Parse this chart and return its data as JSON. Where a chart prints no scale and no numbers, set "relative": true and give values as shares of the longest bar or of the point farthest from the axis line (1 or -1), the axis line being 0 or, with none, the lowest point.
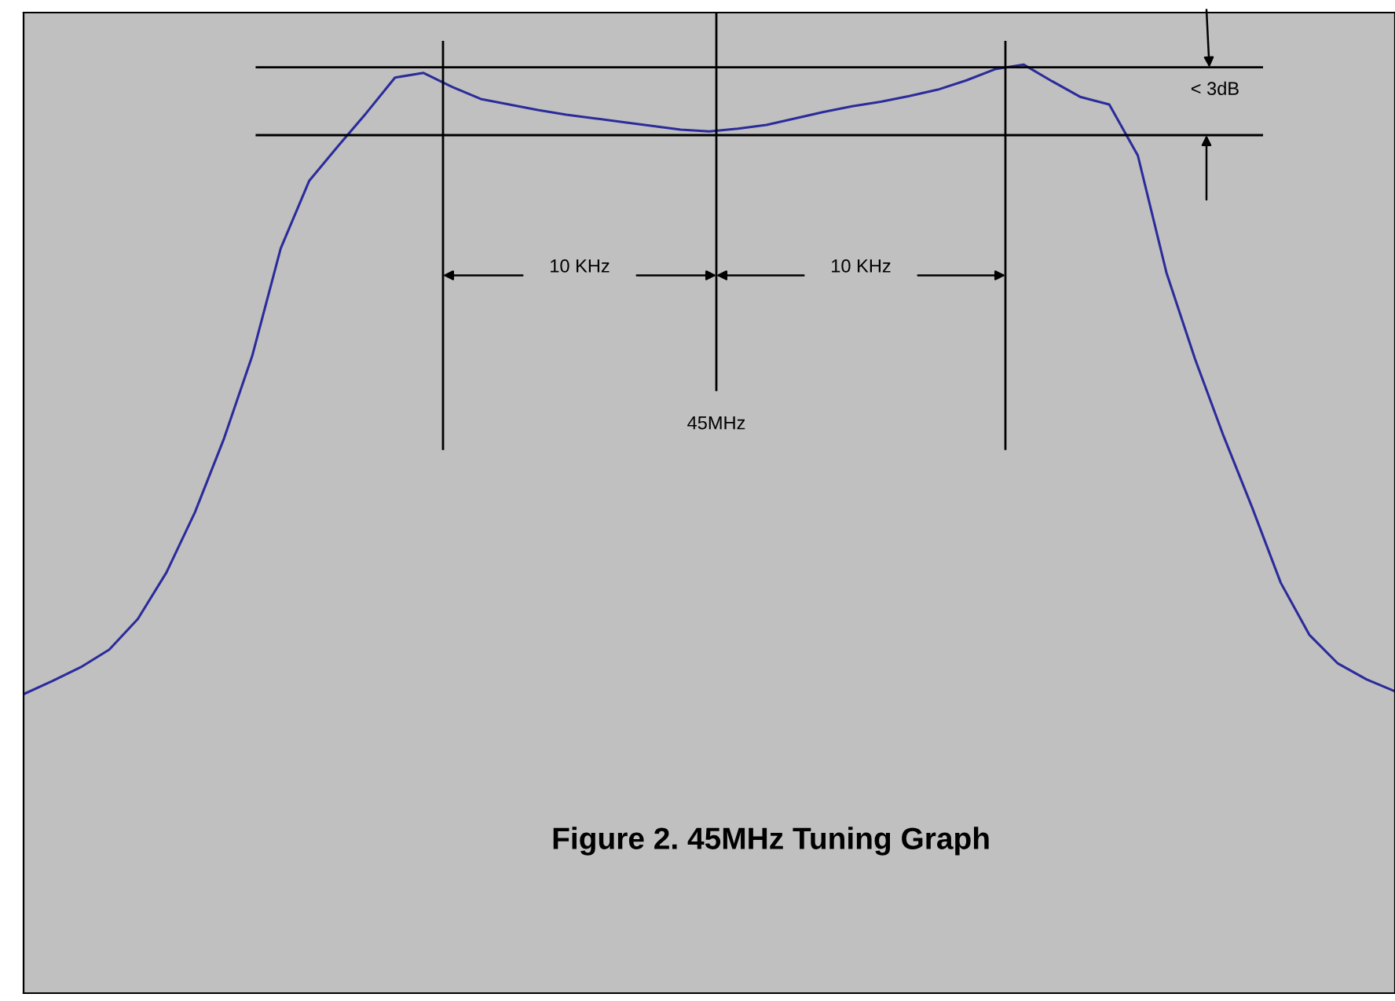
{
  "chart_data": {
    "type": "line",
    "title": "Figure 2. 45MHz Tuning Graph",
    "relative": true,
    "categories": [
      null,
      null,
      null,
      null,
      null,
      null,
      null,
      null,
      null,
      null,
      null,
      null,
      null,
      null,
      null,
      null,
      null,
      null,
      null,
      null,
      null,
      null,
      null,
      null,
      null,
      null,
      null,
      null,
      null,
      null,
      null,
      null,
      null,
      null,
      null,
      null,
      null,
      null,
      null,
      null,
      null,
      null,
      null,
      null,
      null,
      null,
      null,
      null,
      null
    ],
    "series": [
      {
        "color": "#2b2b9b",
        "values": [
          0.322,
          0.336,
          0.351,
          0.37,
          0.403,
          0.453,
          0.518,
          0.596,
          0.686,
          0.802,
          0.875,
          0.912,
          0.948,
          0.986,
          0.991,
          0.976,
          0.963,
          0.957,
          0.951,
          0.946,
          0.942,
          0.938,
          0.934,
          0.93,
          0.928,
          0.931,
          0.935,
          0.942,
          0.949,
          0.955,
          0.96,
          0.966,
          0.973,
          0.983,
          0.995,
          1,
          0.982,
          0.965,
          0.957,
          0.902,
          0.776,
          0.683,
          0.6,
          0.523,
          0.442,
          0.386,
          0.355,
          0.338,
          0.325
        ]
      }
    ],
    "ref_lines": [
      {
        "axis": "y",
        "value": 0.997,
        "color": "#000000"
      },
      {
        "axis": "y",
        "value": 0.924,
        "color": "#000000"
      }
    ],
    "annotations": [
      "10 KHz",
      "10 KHz",
      "45MHz",
      "< 3dB"
    ]
  }
}
